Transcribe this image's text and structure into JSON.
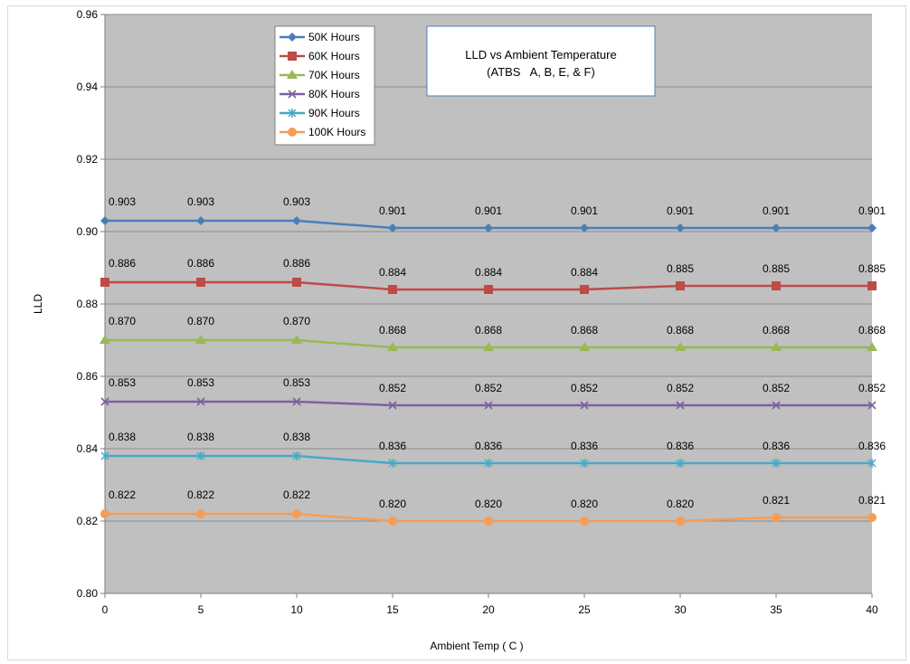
{
  "chart_data": {
    "type": "line",
    "title": "LLD vs Ambient Temperature",
    "subtitle": "(ATBS   A, B, E, & F)",
    "xlabel": "Ambient Temp ( C )",
    "ylabel": "LLD",
    "x": [
      0,
      5,
      10,
      15,
      20,
      25,
      30,
      35,
      40
    ],
    "xlim": [
      0,
      40
    ],
    "ylim": [
      0.8,
      0.96
    ],
    "y_ticks": [
      "0.80",
      "0.82",
      "0.84",
      "0.86",
      "0.88",
      "0.90",
      "0.92",
      "0.94",
      "0.96"
    ],
    "x_ticks": [
      "0",
      "5",
      "10",
      "15",
      "20",
      "25",
      "30",
      "35",
      "40"
    ],
    "grid": "horizontal",
    "legend_position": "top-left",
    "plot_background": "#c0c0c0",
    "series": [
      {
        "name": "50K Hours",
        "color": "#4a7ebb",
        "marker": "diamond",
        "values": [
          0.903,
          0.903,
          0.903,
          0.901,
          0.901,
          0.901,
          0.901,
          0.901,
          0.901
        ],
        "labels": [
          "0.903",
          "0.903",
          "0.903",
          "0.901",
          "0.901",
          "0.901",
          "0.901",
          "0.901",
          "0.901"
        ]
      },
      {
        "name": "60K Hours",
        "color": "#be4b48",
        "marker": "square",
        "values": [
          0.886,
          0.886,
          0.886,
          0.884,
          0.884,
          0.884,
          0.885,
          0.885,
          0.885
        ],
        "labels": [
          "0.886",
          "0.886",
          "0.886",
          "0.884",
          "0.884",
          "0.884",
          "0.885",
          "0.885",
          "0.885"
        ]
      },
      {
        "name": "70K Hours",
        "color": "#98b954",
        "marker": "triangle",
        "values": [
          0.87,
          0.87,
          0.87,
          0.868,
          0.868,
          0.868,
          0.868,
          0.868,
          0.868
        ],
        "labels": [
          "0.870",
          "0.870",
          "0.870",
          "0.868",
          "0.868",
          "0.868",
          "0.868",
          "0.868",
          "0.868"
        ]
      },
      {
        "name": "80K Hours",
        "color": "#7d60a0",
        "marker": "x",
        "values": [
          0.853,
          0.853,
          0.853,
          0.852,
          0.852,
          0.852,
          0.852,
          0.852,
          0.852
        ],
        "labels": [
          "0.853",
          "0.853",
          "0.853",
          "0.852",
          "0.852",
          "0.852",
          "0.852",
          "0.852",
          "0.852"
        ]
      },
      {
        "name": "90K Hours",
        "color": "#46aac5",
        "marker": "star",
        "values": [
          0.838,
          0.838,
          0.838,
          0.836,
          0.836,
          0.836,
          0.836,
          0.836,
          0.836
        ],
        "labels": [
          "0.838",
          "0.838",
          "0.838",
          "0.836",
          "0.836",
          "0.836",
          "0.836",
          "0.836",
          "0.836"
        ]
      },
      {
        "name": "100K Hours",
        "color": "#f59d56",
        "marker": "circle",
        "values": [
          0.822,
          0.822,
          0.822,
          0.82,
          0.82,
          0.82,
          0.82,
          0.821,
          0.821
        ],
        "labels": [
          "0.822",
          "0.822",
          "0.822",
          "0.820",
          "0.820",
          "0.820",
          "0.820",
          "0.821",
          "0.821"
        ]
      }
    ]
  }
}
